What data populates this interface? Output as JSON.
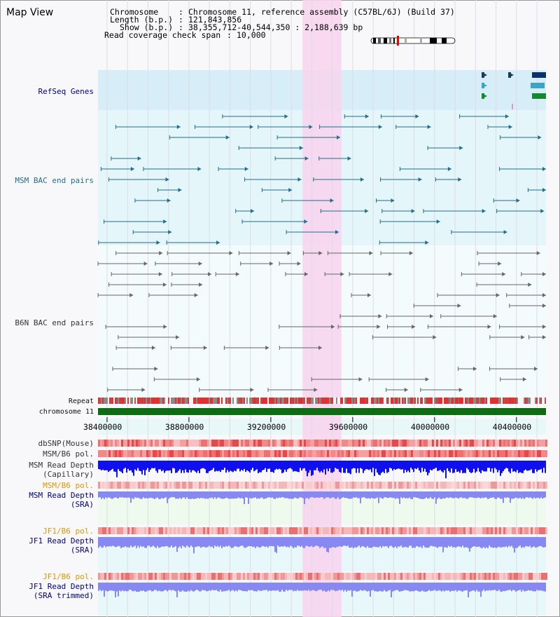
{
  "window_title": "Map View",
  "header": {
    "chromosome_label": "Chromosome",
    "chromosome_value": "Chromosome 11, reference assembly (C57BL/6J) (Build 37)",
    "length_label": "Length (b.p.)",
    "length_value": "121,843,856",
    "show_label": "Show (b.p.)",
    "show_value": "38,355,712-40,544,350 : 2,188,639 bp",
    "coverage_label": "Read coverage check span",
    "coverage_value": "10,000"
  },
  "view": {
    "start": 38355712,
    "end": 40544350,
    "highlight_start": 39355000,
    "highlight_end": 39545000
  },
  "axis": {
    "ticks": [
      "38400000",
      "38800000",
      "39200000",
      "39600000",
      "40000000",
      "40400000"
    ],
    "tick_values": [
      38400000,
      38800000,
      39200000,
      39600000,
      40000000,
      40400000
    ]
  },
  "tracks": {
    "refseq_genes": "RefSeq Genes",
    "msm_bac": "MSM BAC end pairs",
    "b6n_bac": "B6N BAC end pairs",
    "repeat": "Repeat",
    "chromosome": "chromosome 11",
    "dbsnp": "dbSNP(Mouse)",
    "msm_b6_pol": "MSM/B6 pol.",
    "msm_read_depth_cap": "MSM Read Depth\n(Capillary)",
    "msm_b6_pol_2": "MSM/B6 pol.",
    "msm_read_depth_sra": "MSM Read Depth\n(SRA)",
    "jf1_b6_pol": "JF1/B6 pol.",
    "jf1_read_depth_sra": "JF1 Read Depth\n(SRA)",
    "jf1_b6_pol_2": "JF1/B6 pol.",
    "jf1_read_depth_trim": "JF1 Read Depth\n(SRA trimmed)"
  },
  "colors": {
    "refseq_bg": "#d7eef9",
    "msm_bg": "#e4f6fa",
    "b6n_bg": "#ebf8fb",
    "highlight": "#f7d5ee",
    "chromosome": "#0f6b14",
    "msm_bac_line": "#1f6f8b",
    "b6n_bac_line": "#666666",
    "depth_cap": "#1010ee",
    "depth_sra": "#8888f2",
    "snp": "#ee3333"
  }
}
